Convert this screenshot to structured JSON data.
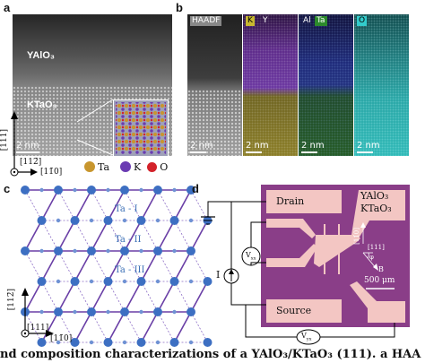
{
  "panel_a": {
    "label": "a",
    "top_material": "YAlO₃",
    "bottom_material": "KTaO₃",
    "scale": "2 nm",
    "axis_vertical": "[111]",
    "axis_horizontal": "[11̄0]",
    "axis_out_of_plane": "[112̄]",
    "legend": [
      {
        "symbol": "Ta",
        "color": "#c8962e"
      },
      {
        "symbol": "K",
        "color": "#6a3bb2"
      },
      {
        "symbol": "O",
        "color": "#d3222a"
      }
    ]
  },
  "panel_b": {
    "label": "b",
    "tiles": [
      {
        "tag": "HAADF",
        "scale": "2 nm"
      },
      {
        "tags": [
          "K",
          "Y"
        ],
        "colors": [
          "#c8b830",
          "#8a3cc8"
        ],
        "scale": "2 nm"
      },
      {
        "tags": [
          "Al",
          "Ta"
        ],
        "colors": [
          "#3a3ad0",
          "#2c8a2c"
        ],
        "scale": "2 nm"
      },
      {
        "tags": [
          "O"
        ],
        "colors": [
          "#33cccc"
        ],
        "scale": "2 nm"
      }
    ]
  },
  "panel_c": {
    "label": "c",
    "sites": [
      "Ta - I",
      "Ta - II",
      "Ta - III"
    ],
    "axis_vertical": "[112̄]",
    "axis_horizontal": "[11̄0]",
    "axis_out_of_plane": "[111]"
  },
  "panel_d": {
    "label": "d",
    "drain": "Drain",
    "source": "Source",
    "current": "I",
    "vxx": "V",
    "vxx_sub": "xx",
    "vyx": "V",
    "vyx_sub": "yx",
    "material_top": "YAlO₃",
    "material_bottom": "KTaO₃",
    "dir_a": "[11̄0]",
    "dir_b": "[111]",
    "phi": "φ",
    "field": "B",
    "scale": "500 μm",
    "colors": {
      "substrate": "#8a3e88",
      "pads": "#f3c6c3"
    }
  },
  "caption": "nd composition characterizations of a YAlO₃/KTaO₃ (111).  a HAA"
}
